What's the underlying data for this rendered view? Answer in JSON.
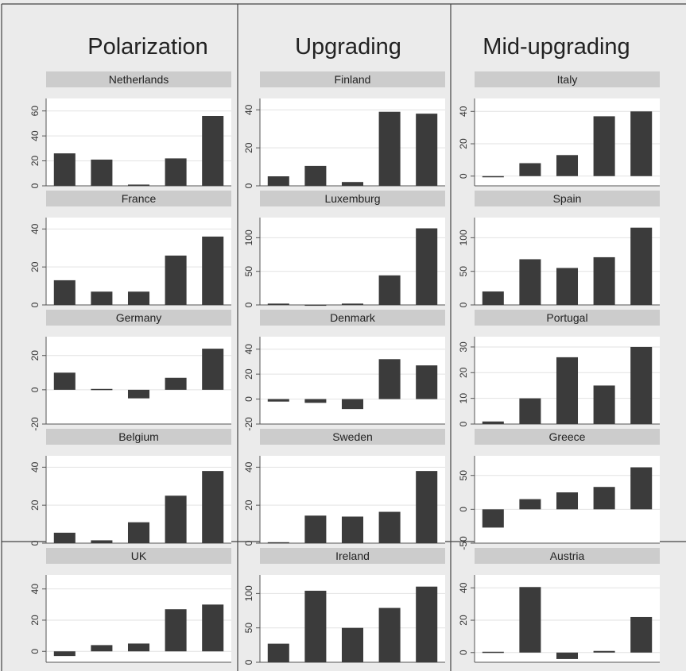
{
  "figure": {
    "columns": [
      "Polarization",
      "Upgrading",
      "Mid-upgrading"
    ],
    "background_color": "#ebebeb",
    "bar_color": "#3b3b3b",
    "strip_color": "#cccccc",
    "frame_color": "#555555",
    "plot_bg": "#ffffff",
    "grid": true
  },
  "chart_data": [
    {
      "type": "bar",
      "title": "Netherlands",
      "column": "Polarization",
      "values": [
        26,
        21,
        1,
        22,
        56
      ],
      "ylim": [
        0,
        70
      ],
      "yticks": [
        0,
        20,
        40,
        60
      ]
    },
    {
      "type": "bar",
      "title": "France",
      "column": "Polarization",
      "values": [
        13,
        7,
        7,
        26,
        36
      ],
      "ylim": [
        0,
        46
      ],
      "yticks": [
        0,
        20,
        40
      ]
    },
    {
      "type": "bar",
      "title": "Germany",
      "column": "Polarization",
      "values": [
        10,
        0.5,
        -5,
        7,
        24
      ],
      "ylim": [
        -20,
        31
      ],
      "yticks": [
        -20,
        0,
        20
      ]
    },
    {
      "type": "bar",
      "title": "Belgium",
      "column": "Polarization",
      "values": [
        5.5,
        1.5,
        11,
        25,
        38
      ],
      "ylim": [
        0,
        46
      ],
      "yticks": [
        0,
        20,
        40
      ]
    },
    {
      "type": "bar",
      "title": "UK",
      "column": "Polarization",
      "values": [
        -3,
        4,
        5,
        27,
        30
      ],
      "ylim": [
        -7,
        49
      ],
      "yticks": [
        0,
        20,
        40
      ]
    },
    {
      "type": "bar",
      "title": "Finland",
      "column": "Upgrading",
      "values": [
        5,
        10.5,
        2,
        39,
        38
      ],
      "ylim": [
        0,
        46
      ],
      "yticks": [
        0,
        20,
        40
      ]
    },
    {
      "type": "bar",
      "title": "Luxemburg",
      "column": "Upgrading",
      "values": [
        2,
        0.5,
        2,
        44,
        114
      ],
      "ylim": [
        0,
        130
      ],
      "yticks": [
        0,
        50,
        100
      ]
    },
    {
      "type": "bar",
      "title": "Denmark",
      "column": "Upgrading",
      "values": [
        -2,
        -3,
        -8,
        32,
        27
      ],
      "ylim": [
        -20,
        50
      ],
      "yticks": [
        -20,
        0,
        20,
        40
      ]
    },
    {
      "type": "bar",
      "title": "Sweden",
      "column": "Upgrading",
      "values": [
        0.5,
        14.5,
        14,
        16.5,
        38
      ],
      "ylim": [
        0,
        46
      ],
      "yticks": [
        0,
        20,
        40
      ]
    },
    {
      "type": "bar",
      "title": "Ireland",
      "column": "Upgrading",
      "values": [
        27,
        104,
        50,
        79,
        110
      ],
      "ylim": [
        0,
        127
      ],
      "yticks": [
        0,
        50,
        100
      ]
    },
    {
      "type": "bar",
      "title": "Italy",
      "column": "Mid-upgrading",
      "values": [
        0,
        8,
        13,
        37,
        40
      ],
      "ylim": [
        -6,
        48
      ],
      "yticks": [
        0,
        20,
        40
      ]
    },
    {
      "type": "bar",
      "title": "Spain",
      "column": "Mid-upgrading",
      "values": [
        20,
        68,
        55,
        71,
        115
      ],
      "ylim": [
        0,
        130
      ],
      "yticks": [
        0,
        50,
        100
      ]
    },
    {
      "type": "bar",
      "title": "Portugal",
      "column": "Mid-upgrading",
      "values": [
        1,
        10,
        26,
        15,
        30
      ],
      "ylim": [
        0,
        34
      ],
      "yticks": [
        0,
        10,
        20,
        30
      ]
    },
    {
      "type": "bar",
      "title": "Greece",
      "column": "Mid-upgrading",
      "values": [
        -27,
        15,
        25,
        33,
        62
      ],
      "ylim": [
        -50,
        79
      ],
      "yticks": [
        -50,
        0,
        50
      ]
    },
    {
      "type": "bar",
      "title": "Austria",
      "column": "Mid-upgrading",
      "values": [
        0.5,
        40.5,
        -4,
        1,
        22
      ],
      "ylim": [
        -6,
        48
      ],
      "yticks": [
        0,
        20,
        40
      ]
    }
  ]
}
